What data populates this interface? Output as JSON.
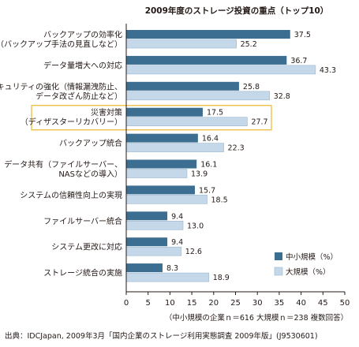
{
  "chart_data": {
    "type": "bar",
    "orientation": "horizontal",
    "title": "2009年度のストレージ投資の重点（トップ10）",
    "categories": [
      [
        "バックアップの効率化",
        "（バックアップ手法の見直しなど）"
      ],
      [
        "データ量増大への対応"
      ],
      [
        "セキュリティの強化（情報漏洩防止、",
        "データ改ざん防止など）"
      ],
      [
        "災害対策",
        "（ディザスターリカバリー）"
      ],
      [
        "バックアップ統合"
      ],
      [
        "データ共有（ファイルサーバー、",
        "NASなどの導入）"
      ],
      [
        "システムの信頼性向上の実現"
      ],
      [
        "ファイルサーバー統合"
      ],
      [
        "システム更改に対応"
      ],
      [
        "ストレージ統合の実施"
      ]
    ],
    "highlighted_category_index": 3,
    "series": [
      {
        "name": "中小規模（%）",
        "values": [
          37.5,
          36.7,
          25.8,
          17.5,
          16.4,
          16.1,
          15.7,
          9.4,
          9.4,
          8.3
        ]
      },
      {
        "name": "大規模（%）",
        "values": [
          25.2,
          43.3,
          32.8,
          27.7,
          22.3,
          13.9,
          18.5,
          13.0,
          12.6,
          18.9
        ]
      }
    ],
    "value_labels": [
      [
        "37.5",
        "36.7",
        "25.8",
        "17.5",
        "16.4",
        "16.1",
        "15.7",
        "9.4",
        "9.4",
        "8.3"
      ],
      [
        "25.2",
        "43.3",
        "32.8",
        "27.7",
        "22.3",
        "13.9",
        "18.5",
        "13.0",
        "12.6",
        "18.9"
      ]
    ],
    "xlim": [
      0,
      50
    ],
    "xticks": [
      0,
      5,
      10,
      15,
      20,
      25,
      30,
      35,
      40,
      45,
      50
    ],
    "grid": false,
    "legend_position": "bottom-right",
    "note": "（中小規模の企業ｎ＝616 大規模ｎ＝238 複数回答）",
    "source": "出典：IDCJapan, 2009年3月「国内企業のストレージ利用実態調査 2009年版」(J9530601)",
    "colors": {
      "series_0": "#3b6e91",
      "series_1": "#c5d8ea",
      "series_1_border": "#9bb6cf",
      "highlight_border": "#f0c24b",
      "axis": "#231815"
    }
  }
}
